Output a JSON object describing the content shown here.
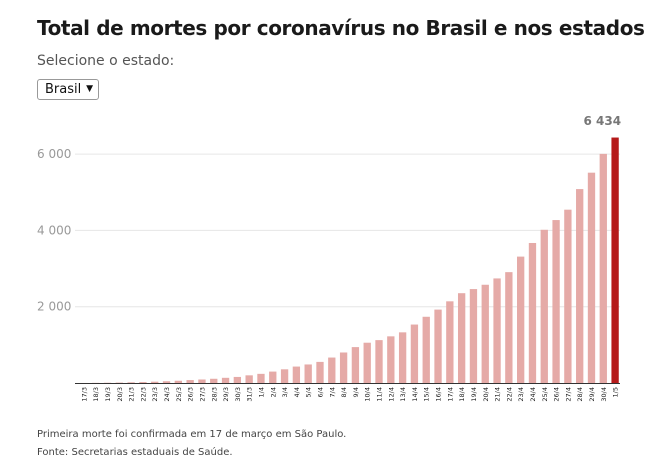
{
  "header": {
    "title": "Total de mortes por coronavírus no Brasil e nos estados",
    "select_label": "Selecione o estado:",
    "select_value": "Brasil"
  },
  "colors": {
    "bar": "#e5aaa7",
    "bar_highlight": "#b51a1a",
    "grid": "#e6e6e6",
    "tick_text": "#999999",
    "last_label": "#777777"
  },
  "chart_data": {
    "type": "bar",
    "title": "Total de mortes por coronavírus no Brasil e nos estados",
    "xlabel": "",
    "ylabel": "",
    "ylim": [
      0,
      6500
    ],
    "yticks": [
      2000,
      4000,
      6000
    ],
    "ytick_labels": [
      "2 000",
      "4 000",
      "6 000"
    ],
    "grid": true,
    "categories": [
      "17/3",
      "18/3",
      "19/3",
      "20/3",
      "21/3",
      "22/3",
      "23/3",
      "24/3",
      "25/3",
      "26/3",
      "27/3",
      "28/3",
      "29/3",
      "30/3",
      "31/3",
      "1/4",
      "2/4",
      "3/4",
      "4/4",
      "5/4",
      "6/4",
      "7/4",
      "8/4",
      "9/4",
      "10/4",
      "11/4",
      "12/4",
      "13/4",
      "14/4",
      "15/4",
      "16/4",
      "17/4",
      "18/4",
      "19/4",
      "20/4",
      "21/4",
      "22/4",
      "23/4",
      "24/4",
      "25/4",
      "26/4",
      "27/4",
      "28/4",
      "29/4",
      "30/4",
      "1/5"
    ],
    "values": [
      1,
      4,
      7,
      11,
      18,
      25,
      34,
      46,
      59,
      77,
      92,
      111,
      136,
      159,
      201,
      240,
      299,
      359,
      431,
      486,
      553,
      667,
      800,
      941,
      1056,
      1124,
      1223,
      1328,
      1532,
      1736,
      1924,
      2141,
      2354,
      2462,
      2575,
      2741,
      2906,
      3313,
      3670,
      4016,
      4271,
      4543,
      5083,
      5513,
      6006,
      6434
    ],
    "last_value_label": "6 434"
  },
  "footer": {
    "note": "Primeira morte foi confirmada em 17 de março em São Paulo.",
    "source": "Fonte: Secretarias estaduais de Saúde."
  }
}
